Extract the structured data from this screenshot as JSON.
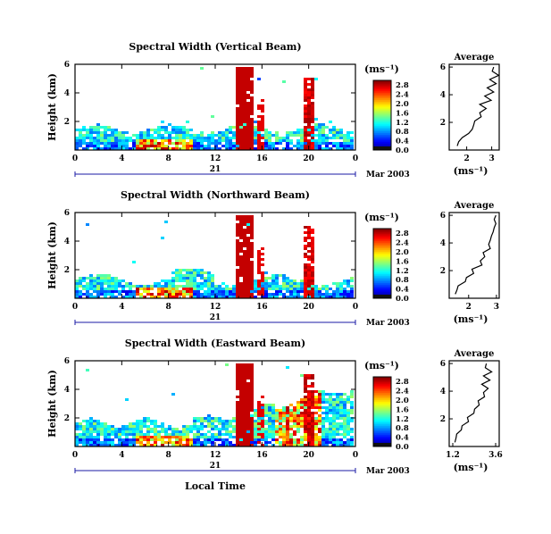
{
  "figure": {
    "xlabel": "Local Time",
    "colorbar_unit": "(ms⁻¹)",
    "average_unit": "(ms⁻¹)",
    "average_title": "Average"
  },
  "chart_data": [
    {
      "type": "heatmap",
      "title": "Spectral Width (Vertical Beam)",
      "ylabel": "Height (km)",
      "xlabel": "",
      "xlim": [
        0,
        24
      ],
      "ylim": [
        0,
        6
      ],
      "x_ticks": [
        "0",
        "4",
        "8",
        "12",
        "16",
        "20",
        "0"
      ],
      "y_ticks": [
        "2",
        "4",
        "6"
      ],
      "date_day": "21",
      "date_label": "Mar 2003",
      "colorbar_ticks": [
        "0.0",
        "0.4",
        "0.8",
        "1.2",
        "1.6",
        "2.0",
        "2.4",
        "2.8"
      ],
      "colorbar_range": [
        0,
        3.0
      ],
      "average_profile": {
        "title": "Average",
        "xlabel": "(ms⁻¹)",
        "x_ticks": [
          "2",
          "3"
        ],
        "xlim": [
          1.3,
          3.3
        ],
        "y_ticks": [
          "2",
          "4",
          "6"
        ],
        "height_km": [
          0.3,
          0.6,
          0.9,
          1.2,
          1.5,
          1.8,
          2.1,
          2.4,
          2.7,
          3.0,
          3.3,
          3.6,
          3.9,
          4.2,
          4.5,
          4.8,
          5.1,
          5.4,
          5.7,
          6.0
        ],
        "width": [
          1.7,
          1.6,
          1.9,
          2.0,
          2.3,
          2.2,
          2.4,
          2.5,
          2.6,
          2.7,
          2.6,
          2.9,
          2.8,
          3.0,
          2.9,
          3.1,
          3.0,
          3.2,
          3.1,
          3.0
        ]
      }
    },
    {
      "type": "heatmap",
      "title": "Spectral Width (Northward Beam)",
      "ylabel": "Height (km)",
      "xlabel": "",
      "xlim": [
        0,
        24
      ],
      "ylim": [
        0,
        6
      ],
      "x_ticks": [
        "0",
        "4",
        "8",
        "12",
        "16",
        "20",
        "0"
      ],
      "y_ticks": [
        "2",
        "4",
        "6"
      ],
      "date_day": "21",
      "date_label": "Mar 2003",
      "colorbar_ticks": [
        "0.0",
        "0.4",
        "0.8",
        "1.2",
        "1.6",
        "2.0",
        "2.4",
        "2.8"
      ],
      "colorbar_range": [
        0,
        3.0
      ],
      "average_profile": {
        "title": "Average",
        "xlabel": "(ms⁻¹)",
        "x_ticks": [
          "2",
          "3"
        ],
        "xlim": [
          1.3,
          3.1
        ],
        "y_ticks": [
          "2",
          "4",
          "6"
        ],
        "height_km": [
          0.3,
          0.6,
          0.9,
          1.2,
          1.5,
          1.8,
          2.1,
          2.4,
          2.7,
          3.0,
          3.3,
          3.6,
          3.9,
          4.2,
          4.5,
          4.8,
          5.1,
          5.4,
          5.7,
          6.0
        ],
        "width": [
          1.6,
          1.5,
          1.7,
          1.8,
          2.0,
          2.1,
          2.2,
          2.4,
          2.5,
          2.5,
          2.6,
          2.7,
          2.8,
          2.7,
          2.9,
          2.8,
          3.0,
          2.9,
          3.0,
          2.9
        ]
      }
    },
    {
      "type": "heatmap",
      "title": "Spectral Width (Eastward Beam)",
      "ylabel": "Height (km)",
      "xlabel": "Local Time",
      "xlim": [
        0,
        24
      ],
      "ylim": [
        0,
        6
      ],
      "x_ticks": [
        "0",
        "4",
        "8",
        "12",
        "16",
        "20",
        "0"
      ],
      "y_ticks": [
        "2",
        "4",
        "6"
      ],
      "date_day": "21",
      "date_label": "Mar 2003",
      "colorbar_ticks": [
        "0.0",
        "0.4",
        "0.8",
        "1.2",
        "1.6",
        "2.0",
        "2.4",
        "2.8"
      ],
      "colorbar_range": [
        0,
        3.0
      ],
      "average_profile": {
        "title": "Average",
        "xlabel": "(ms⁻¹)",
        "x_ticks": [
          "1.2",
          "3.6"
        ],
        "xlim": [
          1.0,
          3.8
        ],
        "y_ticks": [
          "2",
          "4",
          "6"
        ],
        "height_km": [
          0.3,
          0.6,
          0.9,
          1.2,
          1.5,
          1.8,
          2.1,
          2.4,
          2.7,
          3.0,
          3.3,
          3.6,
          3.9,
          4.2,
          4.5,
          4.8,
          5.1,
          5.4,
          5.7,
          6.0
        ],
        "width": [
          1.4,
          1.3,
          1.5,
          1.6,
          1.8,
          2.0,
          2.1,
          2.3,
          2.5,
          2.6,
          2.7,
          2.9,
          3.0,
          3.1,
          2.9,
          3.2,
          3.0,
          3.3,
          3.1,
          3.0
        ]
      }
    }
  ]
}
